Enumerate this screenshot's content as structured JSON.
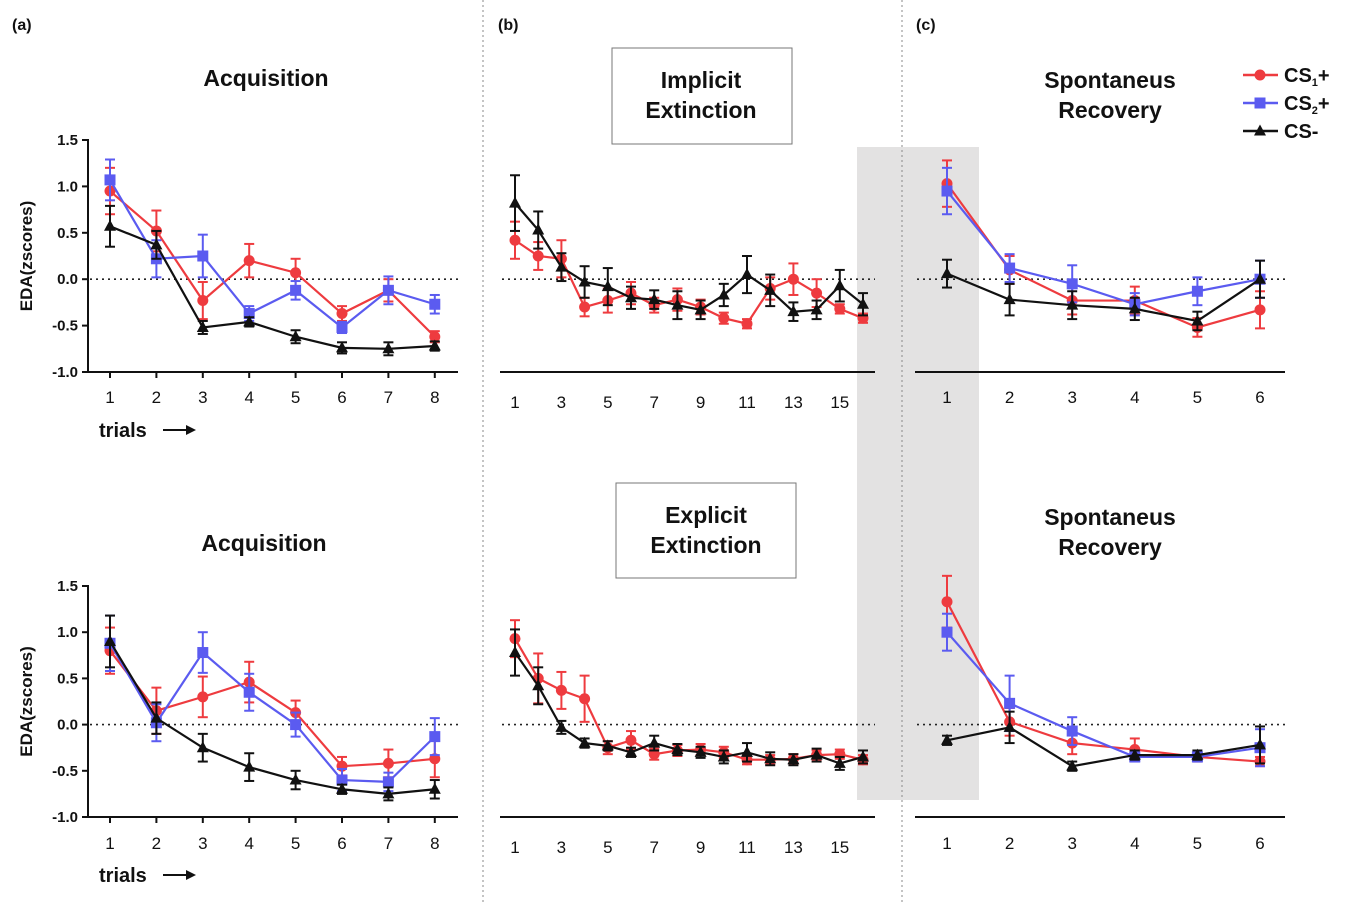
{
  "panel_letters": [
    "(a)",
    "(b)",
    "(c)"
  ],
  "legend": [
    {
      "label": "CS",
      "sub": "1",
      "suffix": "+",
      "color": "#ee3b3f",
      "marker": "circle"
    },
    {
      "label": "CS",
      "sub": "2",
      "suffix": "+",
      "color": "#5b5bf0",
      "marker": "square"
    },
    {
      "label": "CS-",
      "sub": "",
      "suffix": "",
      "color": "#111111",
      "marker": "triangle"
    }
  ],
  "colors": {
    "cs1": "#ee3b3f",
    "cs2": "#5b5bf0",
    "csminus": "#111111",
    "shade": "#e3e2e2",
    "separator": "#888888"
  },
  "ylabel": "EDA(zscores)",
  "trials_label": "trials",
  "chart_data": [
    {
      "id": "a-top",
      "type": "line",
      "title_lines": [
        "Acquisition"
      ],
      "boxed_title": false,
      "x": [
        1,
        2,
        3,
        4,
        5,
        6,
        7,
        8
      ],
      "xticks": [
        "1",
        "2",
        "3",
        "4",
        "5",
        "6",
        "7",
        "8"
      ],
      "ylim": [
        -1.0,
        1.5
      ],
      "yticks": [
        "1.5",
        "1.0",
        "0.5",
        "0.0",
        "-0.5",
        "-1.0"
      ],
      "zero_line": true,
      "series": [
        {
          "key": "cs1",
          "values": [
            0.95,
            0.52,
            -0.23,
            0.2,
            0.07,
            -0.37,
            -0.12,
            -0.62
          ],
          "errors": [
            0.25,
            0.22,
            0.2,
            0.18,
            0.15,
            0.08,
            0.12,
            0.06
          ]
        },
        {
          "key": "cs2",
          "values": [
            1.07,
            0.22,
            0.25,
            -0.37,
            -0.12,
            -0.52,
            -0.12,
            -0.27
          ],
          "errors": [
            0.22,
            0.2,
            0.23,
            0.08,
            0.1,
            0.06,
            0.15,
            0.1
          ]
        },
        {
          "key": "csminus",
          "values": [
            0.57,
            0.37,
            -0.52,
            -0.46,
            -0.62,
            -0.74,
            -0.75,
            -0.72
          ],
          "errors": [
            0.22,
            0.15,
            0.07,
            0.05,
            0.07,
            0.06,
            0.07,
            0.05
          ]
        }
      ]
    },
    {
      "id": "b-top",
      "type": "line",
      "title_lines": [
        "Implicit",
        "Extinction"
      ],
      "boxed_title": true,
      "x": [
        1,
        2,
        3,
        4,
        5,
        6,
        7,
        8,
        9,
        10,
        11,
        12,
        13,
        14,
        15,
        16
      ],
      "xticks": [
        "1",
        "3",
        "5",
        "7",
        "9",
        "11",
        "13",
        "15"
      ],
      "ylim": [
        -1.0,
        1.5
      ],
      "yticks": [],
      "zero_line": true,
      "series": [
        {
          "key": "cs1",
          "values": [
            0.42,
            0.25,
            0.22,
            -0.3,
            -0.23,
            -0.15,
            -0.28,
            -0.22,
            -0.3,
            -0.42,
            -0.48,
            -0.1,
            0.0,
            -0.15,
            -0.32,
            -0.42
          ],
          "errors": [
            0.2,
            0.15,
            0.2,
            0.1,
            0.13,
            0.12,
            0.08,
            0.12,
            0.08,
            0.06,
            0.05,
            0.12,
            0.17,
            0.15,
            0.05,
            0.05
          ]
        },
        {
          "key": "csminus",
          "values": [
            0.82,
            0.53,
            0.13,
            -0.03,
            -0.08,
            -0.2,
            -0.22,
            -0.28,
            -0.33,
            -0.17,
            0.05,
            -0.12,
            -0.35,
            -0.33,
            -0.07,
            -0.27
          ],
          "errors": [
            0.3,
            0.2,
            0.15,
            0.17,
            0.2,
            0.12,
            0.1,
            0.15,
            0.1,
            0.12,
            0.2,
            0.17,
            0.1,
            0.1,
            0.17,
            0.12
          ]
        }
      ]
    },
    {
      "id": "c-top",
      "type": "line",
      "title_lines": [
        "Spontaneus",
        "Recovery"
      ],
      "boxed_title": false,
      "x": [
        1,
        2,
        3,
        4,
        5,
        6
      ],
      "xticks": [
        "1",
        "2",
        "3",
        "4",
        "5",
        "6"
      ],
      "ylim": [
        -1.0,
        1.5
      ],
      "yticks": [],
      "zero_line": true,
      "series": [
        {
          "key": "cs1",
          "values": [
            1.03,
            0.1,
            -0.23,
            -0.23,
            -0.52,
            -0.33
          ],
          "errors": [
            0.25,
            0.15,
            0.15,
            0.15,
            0.1,
            0.2
          ]
        },
        {
          "key": "cs2",
          "values": [
            0.95,
            0.12,
            -0.05,
            -0.27,
            -0.13,
            0.0
          ],
          "errors": [
            0.25,
            0.15,
            0.2,
            0.12,
            0.15,
            0.2
          ]
        },
        {
          "key": "csminus",
          "values": [
            0.06,
            -0.22,
            -0.28,
            -0.32,
            -0.45,
            0.0
          ],
          "errors": [
            0.15,
            0.17,
            0.15,
            0.12,
            0.1,
            0.2
          ]
        }
      ]
    },
    {
      "id": "a-bottom",
      "type": "line",
      "title_lines": [
        "Acquisition"
      ],
      "boxed_title": false,
      "x": [
        1,
        2,
        3,
        4,
        5,
        6,
        7,
        8
      ],
      "xticks": [
        "1",
        "2",
        "3",
        "4",
        "5",
        "6",
        "7",
        "8"
      ],
      "ylim": [
        -1.0,
        1.5
      ],
      "yticks": [
        "1.5",
        "1.0",
        "0.5",
        "0.0",
        "-0.5",
        "-1.0"
      ],
      "zero_line": true,
      "series": [
        {
          "key": "cs1",
          "values": [
            0.8,
            0.15,
            0.3,
            0.46,
            0.13,
            -0.45,
            -0.42,
            -0.37
          ],
          "errors": [
            0.25,
            0.25,
            0.22,
            0.22,
            0.13,
            0.1,
            0.15,
            0.2
          ]
        },
        {
          "key": "cs2",
          "values": [
            0.88,
            0.02,
            0.78,
            0.35,
            0.0,
            -0.6,
            -0.62,
            -0.13
          ],
          "errors": [
            0.3,
            0.2,
            0.22,
            0.2,
            0.13,
            0.12,
            0.1,
            0.2
          ]
        },
        {
          "key": "csminus",
          "values": [
            0.9,
            0.07,
            -0.25,
            -0.46,
            -0.6,
            -0.7,
            -0.75,
            -0.7
          ],
          "errors": [
            0.28,
            0.17,
            0.15,
            0.15,
            0.1,
            0.05,
            0.07,
            0.1
          ]
        }
      ]
    },
    {
      "id": "b-bottom",
      "type": "line",
      "title_lines": [
        "Explicit",
        "Extinction"
      ],
      "boxed_title": true,
      "x": [
        1,
        2,
        3,
        4,
        5,
        6,
        7,
        8,
        9,
        10,
        11,
        12,
        13,
        14,
        15,
        16
      ],
      "xticks": [
        "1",
        "3",
        "5",
        "7",
        "9",
        "11",
        "13",
        "15"
      ],
      "ylim": [
        -1.0,
        1.5
      ],
      "yticks": [],
      "zero_line": true,
      "series": [
        {
          "key": "cs1",
          "values": [
            0.93,
            0.5,
            0.37,
            0.28,
            -0.25,
            -0.17,
            -0.32,
            -0.28,
            -0.27,
            -0.3,
            -0.38,
            -0.38,
            -0.37,
            -0.33,
            -0.32,
            -0.38
          ],
          "errors": [
            0.2,
            0.27,
            0.2,
            0.25,
            0.07,
            0.1,
            0.06,
            0.06,
            0.06,
            0.06,
            0.05,
            0.05,
            0.05,
            0.05,
            0.05,
            0.05
          ]
        },
        {
          "key": "csminus",
          "values": [
            0.78,
            0.42,
            -0.03,
            -0.2,
            -0.23,
            -0.3,
            -0.2,
            -0.27,
            -0.3,
            -0.35,
            -0.3,
            -0.37,
            -0.38,
            -0.33,
            -0.42,
            -0.35
          ],
          "errors": [
            0.25,
            0.2,
            0.07,
            0.05,
            0.05,
            0.05,
            0.08,
            0.06,
            0.06,
            0.07,
            0.1,
            0.07,
            0.06,
            0.07,
            0.07,
            0.07
          ]
        }
      ]
    },
    {
      "id": "c-bottom",
      "type": "line",
      "title_lines": [
        "Spontaneus",
        "Recovery"
      ],
      "boxed_title": false,
      "x": [
        1,
        2,
        3,
        4,
        5,
        6
      ],
      "xticks": [
        "1",
        "2",
        "3",
        "4",
        "5",
        "6"
      ],
      "ylim": [
        -1.0,
        1.5
      ],
      "yticks": [],
      "zero_line": true,
      "series": [
        {
          "key": "cs1",
          "values": [
            1.33,
            0.03,
            -0.2,
            -0.27,
            -0.35,
            -0.4
          ],
          "errors": [
            0.28,
            0.15,
            0.12,
            0.12,
            0.05,
            0.05
          ]
        },
        {
          "key": "cs2",
          "values": [
            1.0,
            0.23,
            -0.07,
            -0.35,
            -0.35,
            -0.25
          ],
          "errors": [
            0.2,
            0.3,
            0.15,
            0.05,
            0.05,
            0.2
          ]
        },
        {
          "key": "csminus",
          "values": [
            -0.17,
            -0.03,
            -0.45,
            -0.33,
            -0.33,
            -0.22
          ],
          "errors": [
            0.05,
            0.17,
            0.05,
            0.05,
            0.05,
            0.2
          ]
        }
      ]
    }
  ]
}
